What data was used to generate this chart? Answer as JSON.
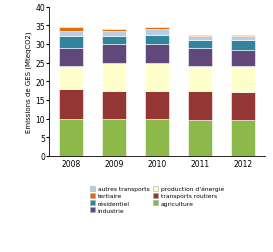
{
  "years": [
    2008,
    2009,
    2010,
    2011,
    2012
  ],
  "sectors": [
    "agriculture",
    "transports routiers",
    "production d’énergie",
    "industrie",
    "résidentiel",
    "autres transports",
    "tertiaire"
  ],
  "colors": [
    "#8db84a",
    "#943634",
    "#ffffcc",
    "#60497a",
    "#31849b",
    "#b8cce4",
    "#e36c09"
  ],
  "values": {
    "agriculture": [
      10.0,
      10.0,
      10.0,
      9.5,
      9.5
    ],
    "transports routiers": [
      8.0,
      7.5,
      7.5,
      8.0,
      7.5
    ],
    "production d’énergie": [
      6.0,
      7.5,
      7.5,
      6.5,
      7.0
    ],
    "industrie": [
      5.0,
      5.0,
      5.0,
      5.0,
      4.5
    ],
    "résidentiel": [
      3.0,
      2.0,
      2.5,
      2.0,
      2.5
    ],
    "autres transports": [
      1.5,
      1.5,
      1.5,
      1.0,
      1.0
    ],
    "tertiaire": [
      1.0,
      0.5,
      0.5,
      0.5,
      0.5
    ]
  },
  "ylim": [
    0,
    40
  ],
  "yticks": [
    0,
    5,
    10,
    15,
    20,
    25,
    30,
    35,
    40
  ],
  "ylabel": "Emissions de GES (MteqCO2)",
  "bar_width": 0.55,
  "legend_order": [
    "autres transports",
    "tertiaire",
    "résidentiel",
    "industrie",
    "production d’énergie",
    "transports routiers",
    "agriculture"
  ],
  "legend_colors": {
    "autres transports": "#b8cce4",
    "tertiaire": "#e36c09",
    "résidentiel": "#31849b",
    "industrie": "#60497a",
    "production d’énergie": "#ffffcc",
    "transports routiers": "#943634",
    "agriculture": "#8db84a"
  }
}
